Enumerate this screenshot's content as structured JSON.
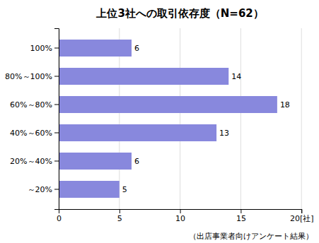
{
  "chart_data": {
    "type": "bar",
    "orientation": "horizontal",
    "title": "上位3社への取引依存度（N=62）",
    "categories": [
      "100%",
      "80%～100%",
      "60%～80%",
      "40%～60%",
      "20%～40%",
      "～20%"
    ],
    "values": [
      6,
      14,
      18,
      13,
      6,
      5
    ],
    "color": "#8888dd",
    "xlim": [
      0,
      20
    ],
    "xticks": [
      0,
      5,
      10,
      15,
      {
        "value": 20,
        "label": "20[社]"
      }
    ],
    "grid": true,
    "data_labels": true,
    "annotations": [
      "（出店事業者向けアンケート結果）"
    ]
  }
}
